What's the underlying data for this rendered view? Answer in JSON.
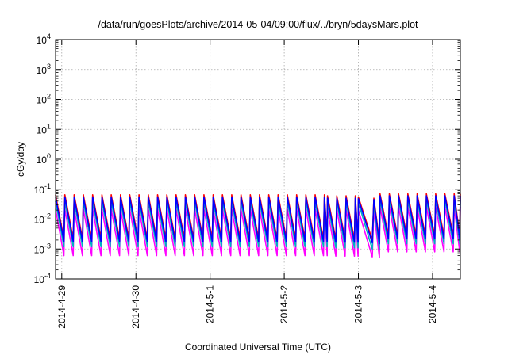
{
  "chart_data": {
    "type": "line",
    "title": "/data/run/goesPlots/archive/2014-05-04/09:00/flux/../bryn/5daysMars.plot",
    "xlabel": "Coordinated Universal Time (UTC)",
    "ylabel": "cGy/day",
    "yscale": "log",
    "ylim": [
      0.0001,
      10000
    ],
    "xlim": [
      "2014-04-28 22:00",
      "2014-05-04 09:00"
    ],
    "grid": true,
    "legend": "none",
    "x_ticks": [
      {
        "label": "2014-4-29",
        "date": "2014-04-29"
      },
      {
        "label": "2014-4-30",
        "date": "2014-04-30"
      },
      {
        "label": "2014-5-1",
        "date": "2014-05-01"
      },
      {
        "label": "2014-5-2",
        "date": "2014-05-02"
      },
      {
        "label": "2014-5-3",
        "date": "2014-05-03"
      },
      {
        "label": "2014-5-4",
        "date": "2014-05-04"
      }
    ],
    "y_ticks": [
      {
        "base": "10",
        "exp": "-4"
      },
      {
        "base": "10",
        "exp": "-3"
      },
      {
        "base": "10",
        "exp": "-2"
      },
      {
        "base": "10",
        "exp": "-1"
      },
      {
        "base": "10",
        "exp": "0"
      },
      {
        "base": "10",
        "exp": "1"
      },
      {
        "base": "10",
        "exp": "2"
      },
      {
        "base": "10",
        "exp": "3"
      },
      {
        "base": "10",
        "exp": "4"
      }
    ],
    "series": [
      {
        "color": "#ff0000",
        "peaks": [
          0.065,
          0.06,
          0.055,
          0.05,
          0.09,
          0.07
        ],
        "troughs": [
          0.0022,
          0.0021,
          0.002,
          0.0019,
          0.0002,
          0.0028
        ]
      },
      {
        "color": "#0000ff",
        "peaks": [
          0.055,
          0.05,
          0.048,
          0.045,
          0.08,
          0.06
        ],
        "troughs": [
          0.0018,
          0.0017,
          0.0016,
          0.0015,
          0.00015,
          0.0022
        ]
      },
      {
        "color": "#00b0c0",
        "peaks": [
          0.04,
          0.038,
          0.036,
          0.034,
          0.06,
          0.045
        ],
        "troughs": [
          0.0012,
          0.0011,
          0.001,
          0.001,
          0.00012,
          0.0015
        ]
      },
      {
        "color": "#ff00ff",
        "peaks": [
          0.022,
          0.021,
          0.02,
          0.019,
          0.035,
          0.026
        ],
        "troughs": [
          0.0006,
          0.00058,
          0.00055,
          0.00052,
          0.0001,
          0.0008
        ]
      }
    ],
    "segments": [
      {
        "start": "2014-04-28 22:00",
        "end": "2014-05-02 14:00",
        "period_hours": 3,
        "level": 0
      },
      {
        "start": "2014-05-02 14:00",
        "end": "2014-05-03 00:00",
        "period_hours": 3,
        "level": 1
      },
      {
        "start": "2014-05-03 00:00",
        "end": "2014-05-03 05:00",
        "period_hours": 5,
        "level": 2
      },
      {
        "start": "2014-05-03 05:00",
        "end": "2014-05-03 07:00",
        "period_hours": 2,
        "level": 3
      },
      {
        "start": "2014-05-03 07:00",
        "end": "2014-05-04 09:00",
        "period_hours": 3,
        "level": 5
      }
    ]
  }
}
